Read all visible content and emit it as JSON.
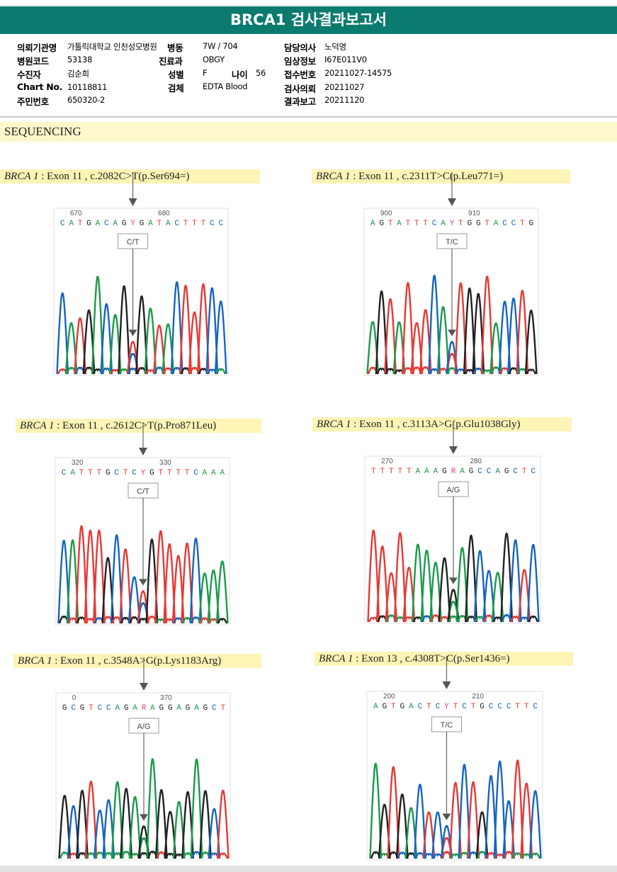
{
  "report": {
    "title": "BRCA1 검사결과보고서"
  },
  "info": {
    "institution_label": "의뢰기관명",
    "institution_value": "가톨릭대학교 인천성모병원",
    "hospital_code_label": "병원코드",
    "hospital_code_value": "53138",
    "patient_label": "수진자",
    "patient_value": "김순희",
    "chart_label": "Chart No.",
    "chart_value": "10118811",
    "resident_label": "주민번호",
    "resident_value": "650320-2",
    "ward_label": "병동",
    "ward_value": "7W / 704",
    "dept_label": "진료과",
    "dept_value": "OBGY",
    "sex_label": "성별",
    "sex_value": "F",
    "age_label": "나이",
    "age_value": "56",
    "specimen_label": "검체",
    "specimen_value": "EDTA Blood",
    "doctor_label": "담당의사",
    "doctor_value": "노덕영",
    "clinical_label": "임상정보",
    "clinical_value": "I67E011V0",
    "receipt_label": "접수번호",
    "receipt_value": "20211027-14575",
    "request_label": "검사의뢰",
    "request_value": "20211027",
    "result_label": "결과보고",
    "result_value": "20211120"
  },
  "section": {
    "title": "SEQUENCING"
  },
  "panels": [
    {
      "gene": "BRCA 1",
      "detail": " : Exon 11 , c.2082C>T(p.Ser694=)",
      "seq": "CATGACAGYGATACTTTCC",
      "ticks": [
        "670",
        "680"
      ],
      "call": "C/T",
      "mut": 8,
      "seed": 11
    },
    {
      "gene": "BRCA 1",
      "detail": " : Exon 11 , c.2311T>C(p.Leu771=)",
      "seq": "AGTATTTCAYTGGTACCTG",
      "ticks": [
        "900",
        "910"
      ],
      "call": "T/C",
      "mut": 9,
      "seed": 23
    },
    {
      "gene": "BRCA 1",
      "detail": " : Exon 11 , c.2612C>T(p.Pro871Leu)",
      "seq": "CATTTGCTCYGTTTTCAAA",
      "ticks": [
        "320",
        "330"
      ],
      "call": "C/T",
      "mut": 9,
      "seed": 37
    },
    {
      "gene": "BRCA 1",
      "detail": " : Exon 11 , c.3113A>G(p.Glu1038Gly)",
      "seq": "TTTTTAAAGRAGCCAGCTC",
      "ticks": [
        "270",
        "280"
      ],
      "call": "A/G",
      "mut": 9,
      "seed": 41
    },
    {
      "gene": "BRCA 1",
      "detail": " : Exon 11 , c.3548A>G(p.Lys1183Arg)",
      "seq": "GCGTCCAGARAGGAGAGCT",
      "ticks": [
        "0",
        "370"
      ],
      "call": "A/G",
      "mut": 9,
      "seed": 53
    },
    {
      "gene": "BRCA 1",
      "detail": " : Exon 13 , c.4308T>C(p.Ser1436=)",
      "seq": "AGTGACTCYTCTGCCCTTC",
      "ticks": [
        "200",
        "210"
      ],
      "call": "T/C",
      "mut": 8,
      "seed": 67
    }
  ],
  "colors": {
    "A": "#1a9a4a",
    "C": "#1565c0",
    "G": "#222222",
    "T": "#e53935",
    "Y": "#ec407a",
    "R": "#ec407a",
    "title_bar": "#0b7b6f",
    "label_bg": "#fdf4b6",
    "section_bg": "#fcf8cc"
  }
}
